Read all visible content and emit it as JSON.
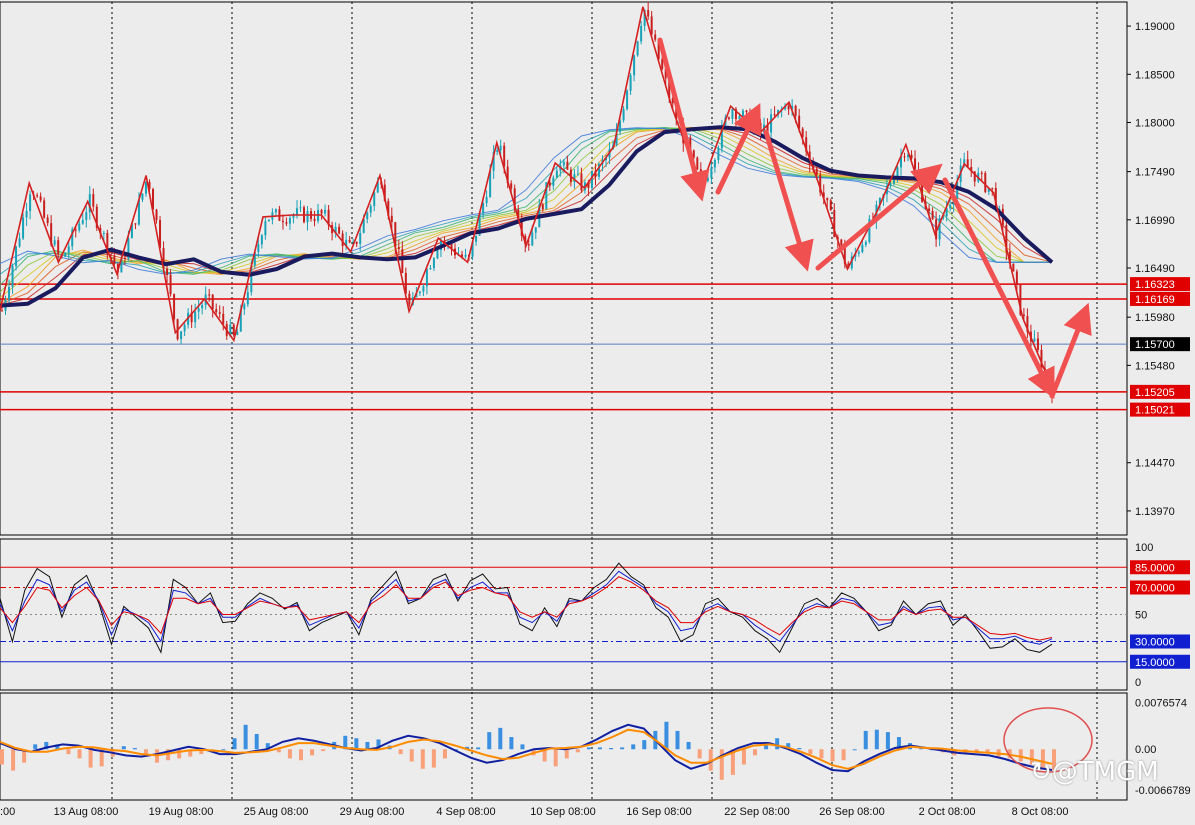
{
  "chart_data": [
    {
      "type": "candlestick",
      "pane": "price",
      "ylim": [
        1.1372,
        1.1925
      ],
      "y_ticks": [
        "1.19000",
        "1.18500",
        "1.18000",
        "1.17490",
        "1.16990",
        "1.16490",
        "1.15980",
        "1.15480",
        "1.14470",
        "1.13970"
      ],
      "levels": [
        {
          "label": "1.16323",
          "value": 1.16323,
          "color": "#e00000"
        },
        {
          "label": "1.16169",
          "value": 1.16169,
          "color": "#e00000"
        },
        {
          "label": "1.15700",
          "value": 1.157,
          "color": "#5a7fbf",
          "current": true
        },
        {
          "label": "1.15205",
          "value": 1.15205,
          "color": "#e00000"
        },
        {
          "label": "1.15021",
          "value": 1.15021,
          "color": "#e00000"
        }
      ],
      "x_ticks": [
        "13 Aug 08:00",
        "19 Aug 08:00",
        "25 Aug 08:00",
        "29 Aug 08:00",
        "4 Sep 08:00",
        "10 Sep 08:00",
        "16 Sep 08:00",
        "22 Sep 08:00",
        "26 Sep 08:00",
        "2 Oct 08:00",
        "8 Oct 08:00"
      ],
      "x_tick_first_partial": ":00",
      "zigzag": [
        1.1605,
        1.1737,
        1.1655,
        1.1718,
        1.1643,
        1.1745,
        1.1582,
        1.1617,
        1.1574,
        1.1702,
        1.1704,
        1.1704,
        1.1666,
        1.1745,
        1.1604,
        1.168,
        1.1655,
        1.1779,
        1.1672,
        1.1758,
        1.1732,
        1.1775,
        1.192,
        1.1815,
        1.1733,
        1.1817,
        1.1789,
        1.1821,
        1.1738,
        1.1648,
        1.1707,
        1.1777,
        1.1684,
        1.1757,
        1.1727,
        1.1597,
        1.1525
      ],
      "ma_thick": [
        1.161,
        1.1612,
        1.1628,
        1.166,
        1.1668,
        1.166,
        1.1653,
        1.1658,
        1.1645,
        1.1642,
        1.1648,
        1.1661,
        1.1664,
        1.166,
        1.1658,
        1.166,
        1.1672,
        1.1685,
        1.169,
        1.17,
        1.1705,
        1.171,
        1.1735,
        1.177,
        1.179,
        1.1793,
        1.1795,
        1.1793,
        1.178,
        1.1763,
        1.175,
        1.1745,
        1.1743,
        1.1742,
        1.1738,
        1.1728,
        1.171,
        1.168,
        1.1655
      ]
    },
    {
      "type": "line",
      "pane": "stochastic",
      "ylim": [
        0,
        100
      ],
      "y_ticks": [
        "100",
        "50",
        "0"
      ],
      "levels": [
        {
          "label": "85.0000",
          "value": 85,
          "color": "#e00000"
        },
        {
          "label": "70.0000",
          "value": 70,
          "color": "#e00000"
        },
        {
          "label": "30.0000",
          "value": 30,
          "color": "#1020d0"
        },
        {
          "label": "15.0000",
          "value": 15,
          "color": "#1020d0"
        }
      ],
      "series": [
        {
          "color": "#111111",
          "values": [
            62,
            30,
            68,
            84,
            78,
            48,
            72,
            79,
            58,
            28,
            56,
            48,
            40,
            22,
            76,
            70,
            58,
            66,
            44,
            45,
            58,
            66,
            62,
            54,
            59,
            38,
            44,
            48,
            52,
            35,
            62,
            72,
            82,
            58,
            62,
            76,
            80,
            60,
            75,
            80,
            69,
            70,
            43,
            38,
            55,
            41,
            62,
            60,
            70,
            76,
            88,
            78,
            72,
            55,
            48,
            30,
            35,
            58,
            62,
            52,
            48,
            38,
            32,
            22,
            40,
            58,
            62,
            55,
            66,
            62,
            52,
            38,
            42,
            60,
            50,
            58,
            60,
            42,
            50,
            38,
            25,
            26,
            32,
            24,
            22,
            28
          ]
        },
        {
          "color": "#1020d0",
          "values": [
            58,
            38,
            60,
            76,
            72,
            52,
            68,
            74,
            60,
            35,
            54,
            50,
            44,
            30,
            68,
            66,
            58,
            62,
            48,
            48,
            56,
            62,
            58,
            55,
            57,
            42,
            46,
            50,
            52,
            40,
            60,
            68,
            76,
            60,
            62,
            72,
            76,
            62,
            70,
            74,
            66,
            66,
            48,
            44,
            52,
            45,
            60,
            60,
            66,
            72,
            82,
            76,
            70,
            58,
            52,
            38,
            40,
            54,
            58,
            52,
            50,
            42,
            36,
            30,
            42,
            54,
            58,
            55,
            62,
            60,
            52,
            42,
            44,
            56,
            50,
            55,
            56,
            46,
            48,
            40,
            32,
            32,
            34,
            30,
            28,
            32
          ]
        },
        {
          "color": "#e00000",
          "values": [
            55,
            44,
            56,
            70,
            68,
            55,
            64,
            70,
            60,
            42,
            52,
            50,
            46,
            36,
            62,
            62,
            58,
            60,
            50,
            50,
            55,
            60,
            58,
            55,
            56,
            46,
            48,
            50,
            52,
            44,
            58,
            64,
            72,
            62,
            62,
            70,
            74,
            64,
            68,
            70,
            66,
            64,
            52,
            48,
            52,
            48,
            58,
            60,
            64,
            70,
            78,
            74,
            68,
            60,
            55,
            44,
            44,
            52,
            56,
            52,
            50,
            46,
            40,
            35,
            44,
            52,
            56,
            55,
            60,
            58,
            52,
            46,
            46,
            54,
            50,
            53,
            54,
            48,
            48,
            42,
            36,
            35,
            36,
            33,
            31,
            33
          ]
        }
      ]
    },
    {
      "type": "bar",
      "pane": "macd",
      "ylim": [
        -0.007,
        0.0079
      ],
      "y_ticks": [
        "0.0076574",
        "0.00",
        "-0.0066789"
      ],
      "values": [
        -0.0025,
        -0.0035,
        -0.0022,
        0.0008,
        0.0012,
        0.0008,
        -0.0008,
        -0.0015,
        -0.003,
        -0.0028,
        -0.0012,
        0.0005,
        0.0002,
        -0.001,
        -0.0022,
        -0.0018,
        -0.0015,
        -0.0012,
        -0.0008,
        -0.0004,
        0.0,
        0.0018,
        0.004,
        0.0025,
        0.001,
        -0.0005,
        -0.0015,
        -0.0018,
        -0.001,
        -0.0003,
        0.0012,
        0.0022,
        0.0018,
        0.0012,
        0.0016,
        0.0006,
        -0.0008,
        -0.002,
        -0.0032,
        -0.003,
        -0.0015,
        0.0,
        0.0004,
        0.0003,
        0.0028,
        0.0035,
        0.002,
        0.0008,
        -0.001,
        -0.002,
        -0.0028,
        -0.0015,
        -0.0005,
        0.0003,
        0.0003,
        0.0002,
        0.0003,
        0.0008,
        0.0015,
        0.003,
        0.0045,
        0.003,
        0.0012,
        -0.0015,
        -0.0035,
        -0.005,
        -0.0042,
        -0.0025,
        -0.001,
        0.0012,
        0.0018,
        0.001,
        0.0002,
        -0.0008,
        -0.0015,
        -0.002,
        -0.0018,
        0.0,
        0.003,
        0.0032,
        0.0028,
        0.002,
        0.001,
        0.0003,
        0.0,
        -0.0005,
        -0.001,
        -0.0008,
        -0.0004,
        -0.0006,
        -0.0012,
        -0.0015,
        -0.002,
        -0.0025,
        -0.003,
        -0.0034
      ],
      "signal": [
        0.0012,
        0.0002,
        -0.0004,
        -0.0004,
        0.0001,
        0.0004,
        0.0003,
        -0.0001,
        -0.0003,
        -0.0008,
        -0.001,
        -0.0006,
        -0.0002,
        -0.0001,
        -0.0003,
        -0.0006,
        -0.0005,
        -0.0003,
        0.0003,
        0.001,
        0.001,
        0.0006,
        0.0002,
        0.0,
        -0.0001,
        0.0004,
        0.0012,
        0.0016,
        0.0013,
        0.0006,
        -0.0002,
        -0.001,
        -0.0016,
        -0.0014,
        -0.0006,
        0.0001,
        0.0002,
        0.0004,
        0.001,
        0.002,
        0.0032,
        0.0028,
        0.001,
        -0.001,
        -0.0022,
        -0.0022,
        -0.0012,
        -0.0002,
        0.0006,
        0.0008,
        0.0004,
        -0.0004,
        -0.0014,
        -0.0026,
        -0.0032,
        -0.0024,
        -0.0012,
        -0.0002,
        0.0004,
        0.0002,
        0.0001,
        -0.0002,
        -0.0004,
        -0.0006,
        -0.0008,
        -0.0012,
        -0.0018,
        -0.0024
      ],
      "macd_line": [
        0.001,
        0.0,
        -0.0004,
        0.0003,
        0.0008,
        0.0006,
        -0.0001,
        -0.0005,
        -0.001,
        -0.0012,
        -0.0008,
        -0.0002,
        0.0004,
        0.0,
        -0.0008,
        -0.0008,
        -0.0004,
        0.0,
        0.0012,
        0.0018,
        0.0014,
        0.0008,
        0.0002,
        -0.0002,
        0.0002,
        0.0014,
        0.0022,
        0.0018,
        0.001,
        -0.0002,
        -0.0014,
        -0.0022,
        -0.0018,
        -0.0008,
        0.0,
        0.0002,
        0.0,
        0.0004,
        0.0016,
        0.003,
        0.004,
        0.0034,
        0.0008,
        -0.0018,
        -0.0032,
        -0.0024,
        -0.001,
        0.0002,
        0.001,
        0.001,
        0.0002,
        -0.0008,
        -0.0022,
        -0.0034,
        -0.0036,
        -0.002,
        -0.0008,
        0.0002,
        0.0006,
        0.0002,
        -0.0002,
        -0.0006,
        -0.0008,
        -0.001,
        -0.0016,
        -0.0024,
        -0.003,
        -0.0034
      ]
    }
  ],
  "colors": {
    "up_candle": "#17a2b8",
    "down_candle": "#c81e1e",
    "zigzag": "#d42020",
    "ma_thick": "#1a1a5e",
    "arrows": "#f05050",
    "hist_pos": "#3a8fe0",
    "hist_neg": "#f7a07a",
    "macd_line": "#1020a0",
    "signal_line": "#ff8c00",
    "level_red": "#e00000",
    "level_blue": "#1020d0",
    "current_price_bg": "#000000",
    "annotation_circle": "#e05050"
  },
  "watermark": "@TMGM",
  "watermark_icon": "tmgm-logo-icon"
}
